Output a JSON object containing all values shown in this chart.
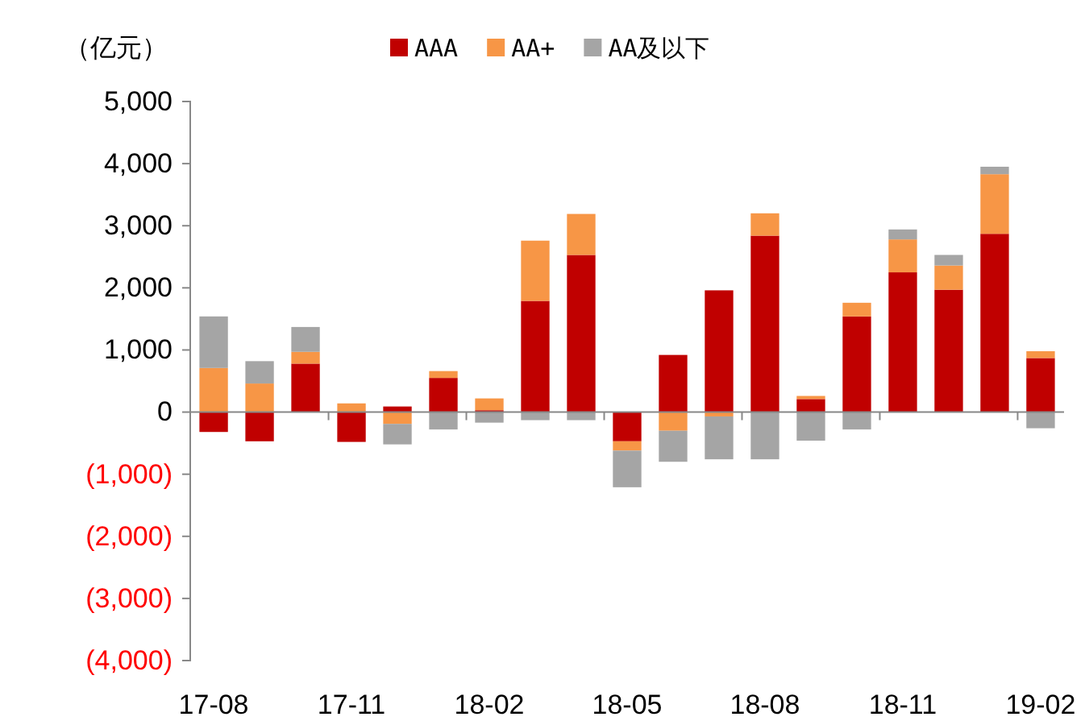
{
  "chart_data": {
    "type": "bar",
    "stacked": true,
    "ylabel": "（亿元）",
    "legend": "top",
    "categories": [
      "17-08",
      null,
      null,
      "17-11",
      null,
      null,
      "18-02",
      null,
      null,
      "18-05",
      null,
      null,
      "18-08",
      null,
      null,
      "18-11",
      null,
      null,
      "19-02"
    ],
    "ylim": [
      -4000,
      5000
    ],
    "yticks": [
      {
        "value": -4000,
        "label": "(4,000)"
      },
      {
        "value": -3000,
        "label": "(3,000)"
      },
      {
        "value": -2000,
        "label": "(2,000)"
      },
      {
        "value": -1000,
        "label": "(1,000)"
      },
      0,
      {
        "value": 1000,
        "label": "1,000"
      },
      {
        "value": 2000,
        "label": "2,000"
      },
      {
        "value": 3000,
        "label": "3,000"
      },
      {
        "value": 4000,
        "label": "4,000"
      },
      {
        "value": 5000,
        "label": "5,000"
      }
    ],
    "series": [
      {
        "name": "AAA",
        "color": "#c00000",
        "values": [
          -320,
          -470,
          780,
          -480,
          90,
          550,
          30,
          1790,
          2530,
          -470,
          920,
          1960,
          2840,
          210,
          1540,
          2250,
          1970,
          2870,
          870
        ]
      },
      {
        "name": "AA+",
        "color": "#f79646",
        "values": [
          710,
          460,
          190,
          140,
          -190,
          110,
          190,
          970,
          660,
          -150,
          -300,
          -70,
          360,
          50,
          220,
          530,
          390,
          960,
          110
        ]
      },
      {
        "name": "AA及以下",
        "color": "#a5a5a5",
        "values": [
          830,
          360,
          400,
          null,
          -330,
          -280,
          -170,
          -130,
          -130,
          -590,
          -500,
          -690,
          -760,
          -460,
          -280,
          160,
          170,
          120,
          -260
        ]
      }
    ]
  }
}
